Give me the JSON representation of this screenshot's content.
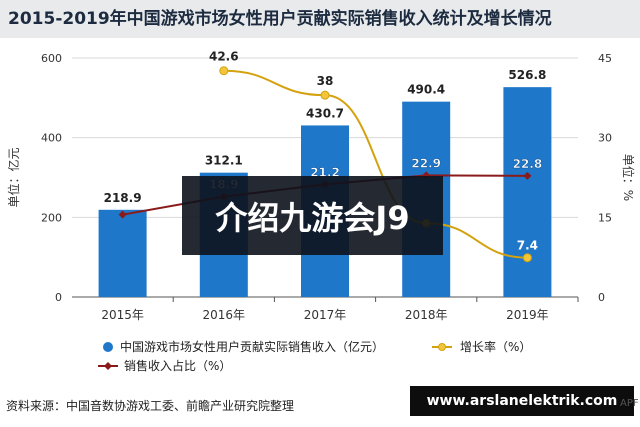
{
  "header": {
    "title": "2015-2019年中国游戏市场女性用户贡献实际销售收入统计及增长情况"
  },
  "chart_data": {
    "type": "bar",
    "title": "2015-2019年中国游戏市场女性用户贡献实际销售收入统计及增长情况",
    "categories": [
      "2015年",
      "2016年",
      "2017年",
      "2018年",
      "2019年"
    ],
    "ylabel": "单位：亿元",
    "y2label": "单位：%",
    "ylim": [
      0,
      600
    ],
    "y2lim": [
      0,
      45
    ],
    "yticks": [
      0,
      200,
      400,
      600
    ],
    "y2ticks": [
      0,
      15,
      30,
      45
    ],
    "legend_position": "bottom",
    "grid": true,
    "series": [
      {
        "name": "中国游戏市场女性用户贡献实际销售收入（亿元）",
        "type": "bar",
        "axis": "left",
        "color": "#1f77c9",
        "values": [
          218.9,
          312.1,
          430.7,
          490.4,
          526.8
        ],
        "labels": [
          "218.9",
          "312.1",
          "430.7",
          "490.4",
          "526.8"
        ]
      },
      {
        "name": "增长率（%）",
        "type": "line",
        "axis": "right",
        "color": "#d4a20f",
        "values": [
          null,
          42.6,
          38,
          13.9,
          7.4
        ],
        "labels": [
          null,
          "42.6",
          "38",
          null,
          "7.4"
        ]
      },
      {
        "name": "销售收入占比（%）",
        "type": "line",
        "axis": "right",
        "color": "#8b1a1a",
        "values": [
          15.5,
          18.9,
          21.2,
          22.9,
          22.8
        ],
        "labels": [
          null,
          "18.9",
          "21.2",
          "22.9",
          "22.8"
        ]
      }
    ]
  },
  "source": "资料来源：中国音数协游戏工委、前瞻产业研究院整理",
  "overlay": {
    "banner": "介绍九游会J9",
    "url": "www.arslanelektrik.com",
    "logo_tag": "APF"
  }
}
